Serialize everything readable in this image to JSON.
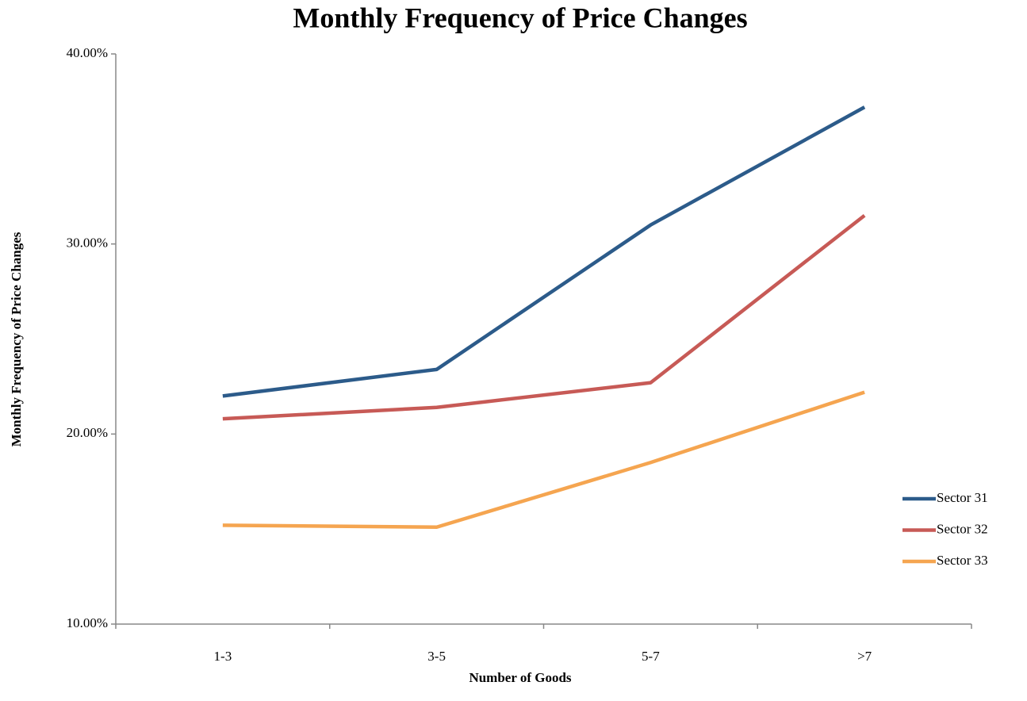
{
  "chart_data": {
    "type": "line",
    "title": "Monthly Frequency of Price Changes",
    "x_label": "Number of Goods",
    "y_label": "Monthly Frequency of Price Changes",
    "categories": [
      "1-3",
      "3-5",
      "5-7",
      ">7"
    ],
    "series": [
      {
        "name": "Sector 31",
        "color": "#2c5b8a",
        "values": [
          22.0,
          23.4,
          31.0,
          37.2
        ]
      },
      {
        "name": "Sector 32",
        "color": "#c75a56",
        "values": [
          20.8,
          21.4,
          22.7,
          31.5
        ]
      },
      {
        "name": "Sector 33",
        "color": "#f5a550",
        "values": [
          15.2,
          15.1,
          18.5,
          22.2
        ]
      }
    ],
    "ylim": [
      10,
      40
    ],
    "yticks": [
      {
        "value": 10,
        "label": "10.00%"
      },
      {
        "value": 20,
        "label": "20.00%"
      },
      {
        "value": 30,
        "label": "30.00%"
      },
      {
        "value": 40,
        "label": "40.00%"
      }
    ],
    "grid": false,
    "legend": "right"
  }
}
